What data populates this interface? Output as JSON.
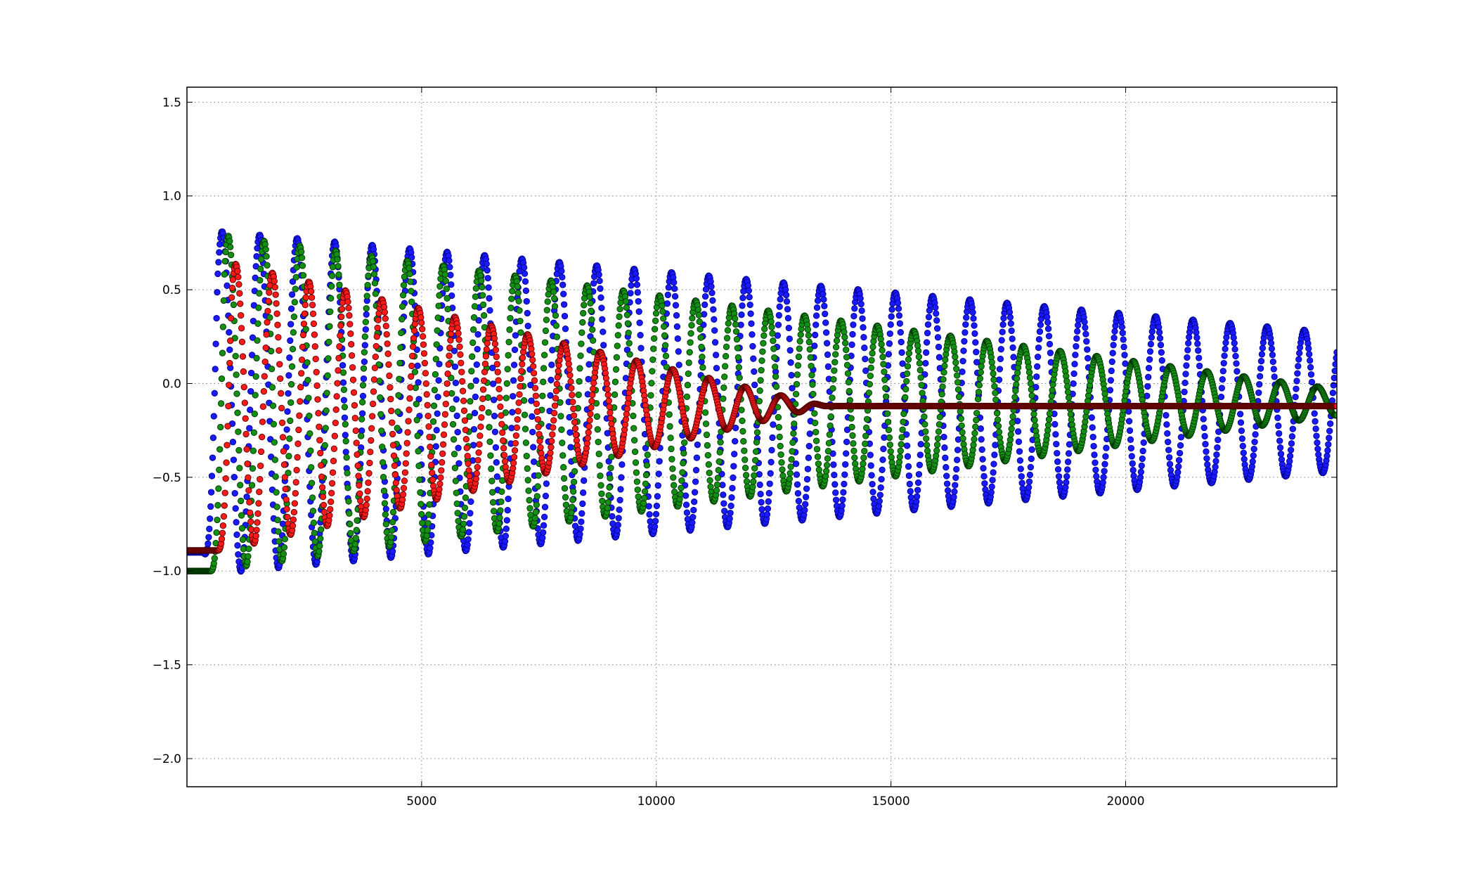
{
  "chart_data": {
    "type": "scatter",
    "title": "",
    "xlabel": "",
    "ylabel": "",
    "xlim": [
      0,
      24500
    ],
    "ylim": [
      -2.15,
      1.58
    ],
    "grid": true,
    "legend": "none",
    "x_ticks": [
      5000,
      10000,
      15000,
      20000
    ],
    "x_tick_labels": [
      "5000",
      "10000",
      "15000",
      "20000"
    ],
    "y_ticks": [
      1.5,
      1.0,
      0.5,
      0.0,
      -0.5,
      -1.0,
      -1.5,
      -2.0
    ],
    "y_tick_labels": [
      "1.5",
      "1.0",
      "0.5",
      "0.0",
      "−0.5",
      "−1.0",
      "−1.5",
      "−2.0"
    ],
    "series": [
      {
        "name": "blue",
        "color": "#1a1aff",
        "edge_color": "#00008b",
        "offset": -0.1,
        "start_value": -0.9,
        "onset": 350,
        "amplitude_start": 0.92,
        "amplitude_end": 0.37,
        "period_start": 800,
        "period_end": 790,
        "decay_end_x": 24500,
        "x_range": [
          0,
          24500
        ],
        "sample_step": 14
      },
      {
        "name": "green",
        "color": "#138f13",
        "edge_color": "#003300",
        "offset": -0.1,
        "start_value": -1.0,
        "onset": 500,
        "amplitude_start": 0.9,
        "amplitude_end": 0.0,
        "period_start": 760,
        "period_end": 790,
        "decay_end_x": 26500,
        "x_range": [
          0,
          24500
        ],
        "sample_step": 14
      },
      {
        "name": "red",
        "color": "#ff1a1a",
        "edge_color": "#550000",
        "offset": -0.12,
        "start_value": -0.89,
        "onset": 650,
        "amplitude_start": 0.78,
        "amplitude_end": 0.0,
        "period_start": 780,
        "period_end": 770,
        "decay_end_x": 13600,
        "x_range": [
          0,
          24500
        ],
        "sample_step": 14
      }
    ]
  }
}
